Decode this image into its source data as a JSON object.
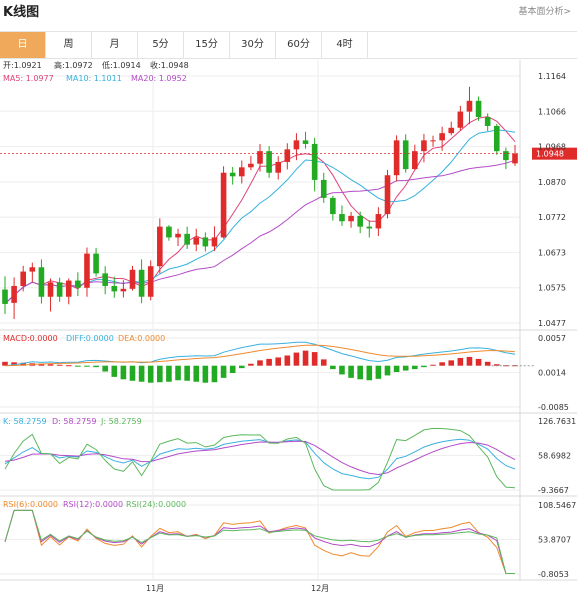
{
  "app": {
    "title": "K线图",
    "link": "基本面分析>"
  },
  "tabs": [
    {
      "label": "日",
      "active": true
    },
    {
      "label": "周",
      "active": false
    },
    {
      "label": "月",
      "active": false
    },
    {
      "label": "5分",
      "active": false
    },
    {
      "label": "15分",
      "active": false
    },
    {
      "label": "30分",
      "active": false
    },
    {
      "label": "60分",
      "active": false
    },
    {
      "label": "4时",
      "active": false
    }
  ],
  "ohlc_info": {
    "open": "开:1.0921",
    "high": "高:1.0972",
    "low": "低:1.0914",
    "close": "收:1.0948"
  },
  "ma_info": {
    "ma5": "MA5: 1.0977",
    "ma10": "MA10: 1.1011",
    "ma20": "MA20: 1.0952"
  },
  "macd_info": {
    "macd": "MACD:0.0000",
    "diff": "DIFF:0.0000",
    "dea": "DEA:0.0000"
  },
  "kdj_info": {
    "k": "K: 58.2759",
    "d": "D: 58.2759",
    "j": "J: 58.2759"
  },
  "rsi_info": {
    "r6": "RSI(6):0.0000",
    "r12": "RSI(12):0.0000",
    "r24": "RSI(24):0.0000"
  },
  "current_price_label": "1.0948",
  "colors": {
    "up": "#e02b2b",
    "down": "#22aa22",
    "ma5": "#e0427a",
    "ma10": "#35b2dd",
    "ma20": "#b44bc8",
    "diff": "#3ab0e0",
    "dea": "#ef8a2e",
    "accent": "#f0a95b"
  },
  "chart_data": [
    {
      "type": "candlestick",
      "title": "",
      "x_labels": [
        "11月",
        "12月"
      ],
      "ylim": [
        1.0477,
        1.1164
      ],
      "yticks": [
        "1.1164",
        "1.1066",
        "1.0968",
        "1.0870",
        "1.0772",
        "1.0673",
        "1.0575",
        "1.0477"
      ],
      "current_price": 1.0948,
      "candles": [
        {
          "o": 1.057,
          "h": 1.0607,
          "l": 1.0502,
          "c": 1.053
        },
        {
          "o": 1.0533,
          "h": 1.0604,
          "l": 1.0488,
          "c": 1.058
        },
        {
          "o": 1.058,
          "h": 1.0636,
          "l": 1.0565,
          "c": 1.062
        },
        {
          "o": 1.062,
          "h": 1.0645,
          "l": 1.059,
          "c": 1.0632
        },
        {
          "o": 1.0632,
          "h": 1.0654,
          "l": 1.0531,
          "c": 1.055
        },
        {
          "o": 1.055,
          "h": 1.0601,
          "l": 1.0509,
          "c": 1.059
        },
        {
          "o": 1.059,
          "h": 1.0603,
          "l": 1.0536,
          "c": 1.055
        },
        {
          "o": 1.055,
          "h": 1.0601,
          "l": 1.0529,
          "c": 1.0595
        },
        {
          "o": 1.0595,
          "h": 1.0618,
          "l": 1.0552,
          "c": 1.0575
        },
        {
          "o": 1.0575,
          "h": 1.0687,
          "l": 1.055,
          "c": 1.067
        },
        {
          "o": 1.067,
          "h": 1.0686,
          "l": 1.0606,
          "c": 1.0615
        },
        {
          "o": 1.0615,
          "h": 1.0635,
          "l": 1.0557,
          "c": 1.058
        },
        {
          "o": 1.058,
          "h": 1.0606,
          "l": 1.0547,
          "c": 1.0565
        },
        {
          "o": 1.0565,
          "h": 1.0596,
          "l": 1.0548,
          "c": 1.0572
        },
        {
          "o": 1.0572,
          "h": 1.0636,
          "l": 1.0567,
          "c": 1.0625
        },
        {
          "o": 1.0625,
          "h": 1.0654,
          "l": 1.0532,
          "c": 1.055
        },
        {
          "o": 1.055,
          "h": 1.0651,
          "l": 1.054,
          "c": 1.0635
        },
        {
          "o": 1.0635,
          "h": 1.0768,
          "l": 1.0615,
          "c": 1.0745
        },
        {
          "o": 1.0745,
          "h": 1.0749,
          "l": 1.0706,
          "c": 1.0715
        },
        {
          "o": 1.0715,
          "h": 1.0739,
          "l": 1.0691,
          "c": 1.0725
        },
        {
          "o": 1.0725,
          "h": 1.0745,
          "l": 1.0683,
          "c": 1.0695
        },
        {
          "o": 1.0695,
          "h": 1.0739,
          "l": 1.0677,
          "c": 1.0715
        },
        {
          "o": 1.0715,
          "h": 1.0729,
          "l": 1.0676,
          "c": 1.069
        },
        {
          "o": 1.069,
          "h": 1.0746,
          "l": 1.0677,
          "c": 1.0715
        },
        {
          "o": 1.0715,
          "h": 1.0913,
          "l": 1.0712,
          "c": 1.0895
        },
        {
          "o": 1.0895,
          "h": 1.0911,
          "l": 1.0862,
          "c": 1.0885
        },
        {
          "o": 1.0885,
          "h": 1.0929,
          "l": 1.0865,
          "c": 1.091
        },
        {
          "o": 1.091,
          "h": 1.0942,
          "l": 1.0902,
          "c": 1.092
        },
        {
          "o": 1.092,
          "h": 1.0975,
          "l": 1.0898,
          "c": 1.0955
        },
        {
          "o": 1.0955,
          "h": 1.0969,
          "l": 1.0881,
          "c": 1.0895
        },
        {
          "o": 1.0895,
          "h": 1.0941,
          "l": 1.0876,
          "c": 1.0925
        },
        {
          "o": 1.0925,
          "h": 1.0977,
          "l": 1.0904,
          "c": 1.096
        },
        {
          "o": 1.096,
          "h": 1.1005,
          "l": 1.093,
          "c": 1.0985
        },
        {
          "o": 1.0985,
          "h": 1.1009,
          "l": 1.0962,
          "c": 1.0975
        },
        {
          "o": 1.0975,
          "h": 1.0992,
          "l": 1.0843,
          "c": 1.0875
        },
        {
          "o": 1.0875,
          "h": 1.0895,
          "l": 1.0811,
          "c": 1.0825
        },
        {
          "o": 1.0825,
          "h": 1.0831,
          "l": 1.0762,
          "c": 1.078
        },
        {
          "o": 1.078,
          "h": 1.0804,
          "l": 1.0747,
          "c": 1.076
        },
        {
          "o": 1.076,
          "h": 1.0786,
          "l": 1.0742,
          "c": 1.0775
        },
        {
          "o": 1.0775,
          "h": 1.0787,
          "l": 1.0727,
          "c": 1.0745
        },
        {
          "o": 1.0745,
          "h": 1.0763,
          "l": 1.0715,
          "c": 1.074
        },
        {
          "o": 1.074,
          "h": 1.0799,
          "l": 1.0719,
          "c": 1.078
        },
        {
          "o": 1.078,
          "h": 1.0903,
          "l": 1.0768,
          "c": 1.0888
        },
        {
          "o": 1.0888,
          "h": 1.0999,
          "l": 1.0871,
          "c": 1.0985
        },
        {
          "o": 1.0985,
          "h": 1.1002,
          "l": 1.0895,
          "c": 1.0905
        },
        {
          "o": 1.0905,
          "h": 1.0973,
          "l": 1.0904,
          "c": 1.0955
        },
        {
          "o": 1.0955,
          "h": 1.1003,
          "l": 1.0924,
          "c": 1.0985
        },
        {
          "o": 1.0985,
          "h": 1.0998,
          "l": 1.0967,
          "c": 1.0985
        },
        {
          "o": 1.0985,
          "h": 1.1023,
          "l": 1.0956,
          "c": 1.1005
        },
        {
          "o": 1.1005,
          "h": 1.1037,
          "l": 1.0999,
          "c": 1.102
        },
        {
          "o": 1.102,
          "h": 1.1081,
          "l": 1.1012,
          "c": 1.1065
        },
        {
          "o": 1.1065,
          "h": 1.1134,
          "l": 1.103,
          "c": 1.1095
        },
        {
          "o": 1.1095,
          "h": 1.1107,
          "l": 1.1039,
          "c": 1.105
        },
        {
          "o": 1.105,
          "h": 1.106,
          "l": 1.1011,
          "c": 1.1025
        },
        {
          "o": 1.1025,
          "h": 1.1031,
          "l": 1.0945,
          "c": 1.0955
        },
        {
          "o": 1.0955,
          "h": 1.0965,
          "l": 1.0905,
          "c": 1.093
        },
        {
          "o": 1.0921,
          "h": 1.0972,
          "l": 1.0914,
          "c": 1.0948
        }
      ]
    },
    {
      "type": "bar",
      "title": "MACD",
      "ylim": [
        -0.0085,
        0.0057
      ],
      "yticks": [
        "0.0057",
        "0.0014",
        "-0.0085"
      ],
      "values": [
        0.0008,
        0.0007,
        0.0006,
        0.0005,
        0.0004,
        0.0003,
        0.0002,
        0.0001,
        -0.0001,
        -0.0002,
        -0.0003,
        -0.0012,
        -0.0023,
        -0.0028,
        -0.0031,
        -0.0033,
        -0.0035,
        -0.0034,
        -0.0033,
        -0.003,
        -0.0031,
        -0.0033,
        -0.0035,
        -0.0034,
        -0.0025,
        -0.0015,
        -0.0005,
        0.0004,
        0.0011,
        0.0014,
        0.0017,
        0.0021,
        0.0027,
        0.0031,
        0.0028,
        0.0013,
        -0.0007,
        -0.0018,
        -0.0025,
        -0.0028,
        -0.003,
        -0.0027,
        -0.002,
        -0.0013,
        -0.001,
        -0.0007,
        -0.0003,
        0.0002,
        0.0007,
        0.0011,
        0.0016,
        0.0018,
        0.0014,
        0.0008,
        0.0003,
        0.0001,
        0.0001
      ]
    },
    {
      "type": "line",
      "title": "KDJ",
      "ylim": [
        -9.3667,
        126.7631
      ],
      "yticks": [
        "126.7631",
        "58.6982",
        "-9.3667"
      ]
    },
    {
      "type": "line",
      "title": "RSI",
      "ylim": [
        -0.8053,
        108.5467
      ],
      "yticks": [
        "108.5467",
        "53.8707",
        "-0.8053"
      ]
    }
  ]
}
